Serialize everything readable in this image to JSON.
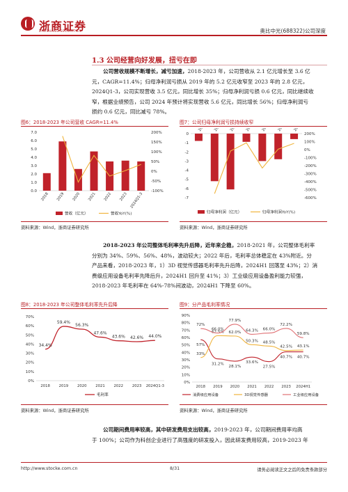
{
  "header": {
    "logo_text": "浙商证券",
    "logo_en": "ZHESHANG SECURITIES",
    "right_text": "奥比中光(688322)公司深度"
  },
  "section": {
    "title": "1.3 公司经营向好发展，扭亏在即"
  },
  "para1": {
    "lead": "公司营收规模不断增长，减亏加速，",
    "lines": [
      "2018-2023 年，公司营收从 2.1 亿元增长至 3.6 亿",
      "元，CAGR=11.4%；归母净利润亏损从 2019 年的 5.2 亿元收窄至 2023 年的 2.8 亿元，",
      "2024Q1-3，公司实现营收 3.5 亿元，同比增长 35%；归母净利润亏损 0.6 亿元，同比继续收",
      "窄，根据业绩预告，公司 2024 年预计将实现营收 5.6 亿元，同比增长 56%；归母净利润亏",
      "损约 0.6 亿元，同比减亏 78%。"
    ]
  },
  "fig6": {
    "title": "图6：2018-2023 年公司营收 CAGR=11.4%",
    "legend": [
      "营收（亿元）",
      "营收YoY(%)"
    ],
    "source": "资料来源：Wind，浙商证券研究所"
  },
  "fig7": {
    "title": "图7：公司归母净利润亏损持续收窄",
    "legend": [
      "归母净利润（亿元）",
      "归母净利润YoY(%)"
    ],
    "source": "资料来源：Wind，浙商证券研究所"
  },
  "para2": {
    "lead": "2018-2023 年公司整体毛利率先升后降，近年来企稳，",
    "lines": [
      "2018-2021 年，公司整体毛利率",
      "分别为 34%、59%、56%、48%，波动较大；2022 年后，毛利率总体稳定在 43%附近。分",
      "产品来看，2018-2023 年，1）3D 视觉传感器毛利率先升后降，2024H1 回落至 43%；2）消",
      "费级应用设备毛利率先降后升，2024H1 回升至 41%；3）工业级应用设备盈利能力较强，",
      "2018-2023 年毛利率在 64%-78%间波动，2024H1 下降至 60%。"
    ]
  },
  "fig8": {
    "title": "图8：2018-2023 年公司整体毛利率先升后降",
    "legend": [
      "毛利率"
    ],
    "source": "资料来源：Wind，浙商证券研究所"
  },
  "fig9": {
    "title": "图9：分产品毛利率情况",
    "legend": [
      "消费级应用设备",
      "3D视觉传感器",
      "工业级应用设备"
    ],
    "source": "资料来源：Wind，浙商证券研究所"
  },
  "para3": {
    "lead": "公司期间费用率较高，其中研发费用支出较高，",
    "lines": [
      "2019-2023 年，公司期间费用率均高",
      "于 100%；公司作为科创企业进行了高强度的研发投入，因此研发费用较高，2019-2023 年"
    ]
  },
  "footer": {
    "url": "http://www.stocke.com.cn",
    "page": "8/31",
    "disclaimer": "请务必阅读正文之后的免责条款部分"
  },
  "colors": {
    "brand_red": "#b81c22",
    "line_orange": "#f0b43c",
    "bar_red": "#c0222a",
    "line_pink": "#e07074",
    "line_blue": "#4a6fa5",
    "line_green": "#a8b86c"
  },
  "chart_data": [
    {
      "type": "bar",
      "id": "fig6",
      "categories": [
        "2018",
        "2019",
        "2020",
        "2021",
        "2022",
        "2023",
        "2024Q1-3"
      ],
      "series": [
        {
          "name": "营收（亿元）",
          "values": [
            2.1,
            5.9,
            2.6,
            4.7,
            3.5,
            3.6,
            3.5
          ],
          "axis": "left"
        },
        {
          "name": "营收YoY(%)",
          "type": "line",
          "values": [
            null,
            180,
            -56,
            81,
            -25,
            3,
            35
          ],
          "axis": "right"
        }
      ],
      "ylim": [
        0,
        7.0
      ],
      "yticks": [
        "0.0",
        "1.0",
        "2.0",
        "3.0",
        "4.0",
        "5.0",
        "6.0",
        "7.0"
      ],
      "y2lim": [
        -100,
        200
      ],
      "y2ticks": [
        "-100%",
        "-50%",
        "0%",
        "50%",
        "100%",
        "150%",
        "200%"
      ]
    },
    {
      "type": "bar",
      "id": "fig7",
      "categories": [
        "2018",
        "2019",
        "2020",
        "2021",
        "2022",
        "2023",
        "2024Q1-3"
      ],
      "series": [
        {
          "name": "归母净利润（亿元）",
          "values": [
            -0.8,
            -5.2,
            -6.1,
            -0.9,
            -3.0,
            -2.8,
            -0.6
          ],
          "axis": "left"
        },
        {
          "name": "归母净利润YoY(%)",
          "type": "line",
          "values": [
            null,
            -550,
            -17,
            85,
            -230,
            6,
            78
          ],
          "axis": "right"
        }
      ],
      "ylim": [
        -7,
        0
      ],
      "yticks": [
        "0",
        "-1",
        "-2",
        "-3",
        "-4",
        "-5",
        "-6",
        "-7"
      ],
      "y2lim": [
        -600,
        200
      ],
      "y2ticks": [
        "-600%",
        "-500%",
        "-400%",
        "-300%",
        "-200%",
        "-100%",
        "0%",
        "100%",
        "200%"
      ]
    },
    {
      "type": "line",
      "id": "fig8",
      "categories": [
        "2018",
        "2019",
        "2020",
        "2021",
        "2022",
        "2023",
        "2024Q1-3"
      ],
      "series": [
        {
          "name": "毛利率",
          "values": [
            34.4,
            59.4,
            56.3,
            47.6,
            43.6,
            42.6,
            44.0
          ]
        }
      ],
      "data_labels": [
        "34.4%",
        "59.4%",
        "56.3%",
        "47.6%",
        "43.6%",
        "42.6%",
        "44.0%"
      ],
      "ylim": [
        0,
        70
      ],
      "yticks": [
        "0%",
        "10%",
        "20%",
        "30%",
        "40%",
        "50%",
        "60%",
        "70%"
      ]
    },
    {
      "type": "line",
      "id": "fig9",
      "categories": [
        "2018",
        "2019",
        "2020",
        "2021",
        "2022",
        "2023",
        "2024H1"
      ],
      "series": [
        {
          "name": "消费级应用设备",
          "values": [
            57,
            31.2,
            28.1,
            33.6,
            27.5,
            40.7,
            40.7
          ],
          "labels": [
            "57%",
            "31.2%",
            "28.1%",
            "33.6%",
            "27.5%",
            "40.7%",
            "40.7%"
          ]
        },
        {
          "name": "3D视觉传感器",
          "values": [
            33,
            62.5,
            62.0,
            50.3,
            48.5,
            42.5,
            43.1
          ],
          "labels": [
            "33%",
            "62.5%",
            "62.0%",
            "50.3%",
            "48.5%",
            "42.5%",
            "43.1%"
          ]
        },
        {
          "name": "工业级应用设备",
          "values": [
            72,
            66.0,
            77.9,
            64.3,
            66.0,
            72.2,
            59.8
          ],
          "labels": [
            "72%",
            "66.0%",
            "77.9%",
            "64.3%",
            "66.0%",
            "72.2%",
            "59.8%"
          ]
        }
      ],
      "ylim": [
        0,
        90
      ],
      "yticks": [
        "0%",
        "10%",
        "20%",
        "30%",
        "40%",
        "50%",
        "60%",
        "70%",
        "80%",
        "90%"
      ]
    }
  ]
}
